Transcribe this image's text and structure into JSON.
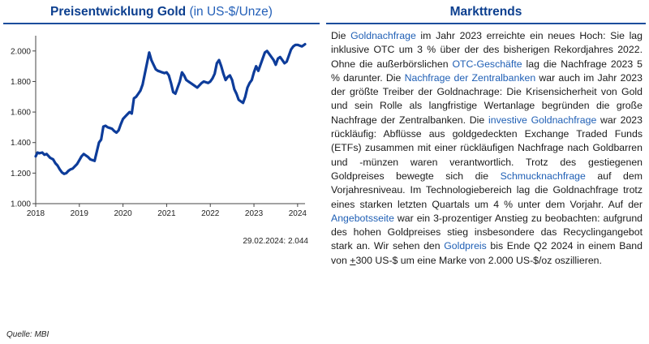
{
  "left": {
    "title_bold": "Preisentwicklung Gold",
    "title_unit": "(in US-$/Unze)",
    "note": "29.02.2024: 2.044"
  },
  "right": {
    "title": "Markttrends",
    "segments": [
      {
        "text": "Die ",
        "hl": false
      },
      {
        "text": "Goldnachfrage",
        "hl": true
      },
      {
        "text": " im Jahr 2023 erreichte ein neues Hoch: Sie lag inklusive OTC um 3 % über der des bisherigen Rekordjahres 2022. Ohne die außerbörslichen ",
        "hl": false
      },
      {
        "text": "OTC-Geschäfte",
        "hl": true
      },
      {
        "text": " lag die Nachfrage 2023 5 % darunter. Die ",
        "hl": false
      },
      {
        "text": "Nachfrage der Zentralbanken",
        "hl": true
      },
      {
        "text": " war auch im Jahr 2023 der größte Treiber der Goldnachrage: Die Krisensicherheit von Gold und sein Rolle als langfristige Wertanlage begründen die große Nachfrage der Zentralbanken. Die ",
        "hl": false
      },
      {
        "text": "investive Goldnachfrage",
        "hl": true
      },
      {
        "text": " war 2023 rückläufig: Abflüsse aus goldgedeckten Exchange Traded Funds (ETFs) zusammen mit einer rückläufigen Nachfrage nach Goldbarren und -münzen waren verantwortlich. Trotz des gestiegenen Goldpreises bewegte sich die ",
        "hl": false
      },
      {
        "text": "Schmucknachfrage",
        "hl": true
      },
      {
        "text": " auf dem Vorjahresniveau. Im Technologiebereich lag die Goldnachfrage trotz eines starken letzten Quartals um 4 % unter dem Vorjahr. Auf der ",
        "hl": false
      },
      {
        "text": "Angebotsseite",
        "hl": true
      },
      {
        "text": " war ein 3-prozentiger Anstieg zu beobachten: aufgrund des hohen Goldpreises stieg insbesondere das Recyclingangebot stark an. Wir sehen den ",
        "hl": false
      },
      {
        "text": "Goldpreis",
        "hl": true
      },
      {
        "text": " bis Ende Q2 2024 in einem Band von ",
        "hl": false
      },
      {
        "text": "+",
        "hl": false,
        "u": true
      },
      {
        "text": "300 US-$ um eine Marke von 2.000 US-$/oz oszillieren.",
        "hl": false
      }
    ]
  },
  "source": "Quelle: MBI",
  "colors": {
    "line": "#0d3c9a",
    "title": "#0c3f8f",
    "highlight": "#1f5fb5",
    "rule": "#1c4e9c"
  },
  "chart_data": {
    "type": "line",
    "title": "Preisentwicklung Gold (in US-$/Unze)",
    "xlabel": "",
    "ylabel": "",
    "xlim": [
      2018.0,
      2024.17
    ],
    "ylim": [
      1000,
      2100
    ],
    "yticks": [
      1000,
      1200,
      1400,
      1600,
      1800,
      2000
    ],
    "ytick_labels": [
      "1.000",
      "1.200",
      "1.400",
      "1.600",
      "1.800",
      "2.000"
    ],
    "xticks": [
      2018,
      2019,
      2020,
      2021,
      2022,
      2023,
      2024
    ],
    "xtick_labels": [
      "2018",
      "2019",
      "2020",
      "2021",
      "2022",
      "2023",
      "2024"
    ],
    "grid": false,
    "series": [
      {
        "name": "Goldpreis",
        "x": [
          2018.0,
          2018.04,
          2018.08,
          2018.15,
          2018.2,
          2018.25,
          2018.33,
          2018.4,
          2018.45,
          2018.5,
          2018.55,
          2018.6,
          2018.65,
          2018.7,
          2018.75,
          2018.8,
          2018.85,
          2018.9,
          2018.95,
          2019.0,
          2019.05,
          2019.1,
          2019.2,
          2019.25,
          2019.3,
          2019.35,
          2019.4,
          2019.45,
          2019.5,
          2019.55,
          2019.6,
          2019.65,
          2019.7,
          2019.75,
          2019.8,
          2019.85,
          2019.9,
          2019.95,
          2020.0,
          2020.05,
          2020.1,
          2020.15,
          2020.2,
          2020.25,
          2020.3,
          2020.35,
          2020.4,
          2020.45,
          2020.5,
          2020.55,
          2020.6,
          2020.62,
          2020.65,
          2020.7,
          2020.75,
          2020.8,
          2020.85,
          2020.9,
          2020.95,
          2021.0,
          2021.05,
          2021.1,
          2021.15,
          2021.2,
          2021.25,
          2021.3,
          2021.35,
          2021.4,
          2021.45,
          2021.5,
          2021.55,
          2021.6,
          2021.65,
          2021.7,
          2021.75,
          2021.8,
          2021.85,
          2021.9,
          2021.95,
          2022.0,
          2022.05,
          2022.1,
          2022.15,
          2022.2,
          2022.25,
          2022.3,
          2022.35,
          2022.4,
          2022.45,
          2022.5,
          2022.55,
          2022.6,
          2022.65,
          2022.7,
          2022.75,
          2022.8,
          2022.85,
          2022.9,
          2022.95,
          2023.0,
          2023.05,
          2023.1,
          2023.15,
          2023.2,
          2023.25,
          2023.3,
          2023.35,
          2023.4,
          2023.45,
          2023.5,
          2023.55,
          2023.6,
          2023.65,
          2023.7,
          2023.75,
          2023.8,
          2023.85,
          2023.9,
          2023.95,
          2024.0,
          2024.05,
          2024.1,
          2024.17
        ],
        "values": [
          1310,
          1335,
          1330,
          1335,
          1320,
          1325,
          1300,
          1290,
          1265,
          1250,
          1225,
          1205,
          1195,
          1200,
          1215,
          1225,
          1230,
          1245,
          1260,
          1285,
          1310,
          1325,
          1305,
          1290,
          1285,
          1280,
          1340,
          1400,
          1420,
          1505,
          1510,
          1500,
          1495,
          1490,
          1475,
          1465,
          1480,
          1520,
          1555,
          1570,
          1585,
          1600,
          1590,
          1690,
          1700,
          1720,
          1740,
          1780,
          1850,
          1920,
          1990,
          1970,
          1940,
          1910,
          1880,
          1870,
          1865,
          1860,
          1855,
          1860,
          1840,
          1790,
          1730,
          1720,
          1760,
          1800,
          1860,
          1840,
          1810,
          1800,
          1790,
          1780,
          1770,
          1760,
          1775,
          1790,
          1800,
          1795,
          1790,
          1800,
          1820,
          1850,
          1920,
          1940,
          1900,
          1850,
          1810,
          1830,
          1840,
          1810,
          1750,
          1720,
          1680,
          1670,
          1660,
          1700,
          1760,
          1790,
          1810,
          1860,
          1900,
          1870,
          1910,
          1950,
          1990,
          2000,
          1980,
          1960,
          1940,
          1910,
          1950,
          1960,
          1940,
          1920,
          1930,
          1970,
          2010,
          2030,
          2040,
          2040,
          2035,
          2030,
          2044
        ]
      }
    ]
  }
}
